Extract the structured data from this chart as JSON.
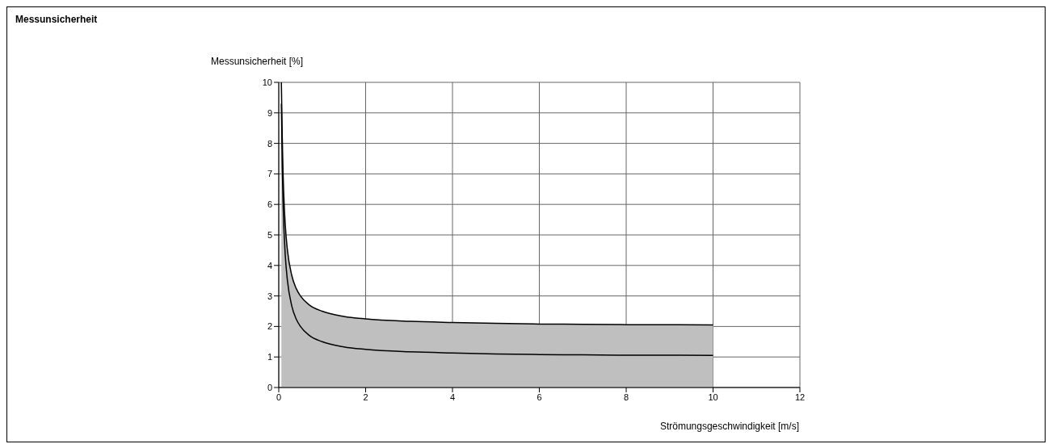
{
  "chart_data": {
    "type": "line",
    "title": "Messunsicherheit",
    "ylabel": "Messunsicherheit [%]",
    "xlabel": "Strömungsgeschwindigkeit [m/s]",
    "x": [
      0.06,
      0.08,
      0.1,
      0.15,
      0.2,
      0.3,
      0.4,
      0.5,
      0.7,
      1,
      1.5,
      2,
      3,
      4,
      5,
      6,
      7,
      8,
      9,
      10
    ],
    "series": [
      {
        "type": "area",
        "color": "#bfbfbf",
        "values": [
          10,
          8.25,
          7,
          5.33,
          4.5,
          3.67,
          3.25,
          3,
          2.71,
          2.5,
          2.33,
          2.25,
          2.17,
          2.13,
          2.1,
          2.08,
          2.07,
          2.06,
          2.06,
          2.05
        ]
      },
      {
        "color": "#000000",
        "values": [
          9.3,
          7.25,
          6,
          4.33,
          3.5,
          2.67,
          2.25,
          2,
          1.71,
          1.5,
          1.33,
          1.25,
          1.17,
          1.13,
          1.1,
          1.08,
          1.07,
          1.06,
          1.06,
          1.05
        ]
      }
    ],
    "xlim": [
      0,
      12
    ],
    "xticks": [
      0,
      2,
      4,
      6,
      8,
      10,
      12
    ],
    "ylim": [
      0,
      10
    ],
    "yticks": [
      0,
      1,
      2,
      3,
      4,
      5,
      6,
      7,
      8,
      9,
      10
    ],
    "grid": true
  }
}
